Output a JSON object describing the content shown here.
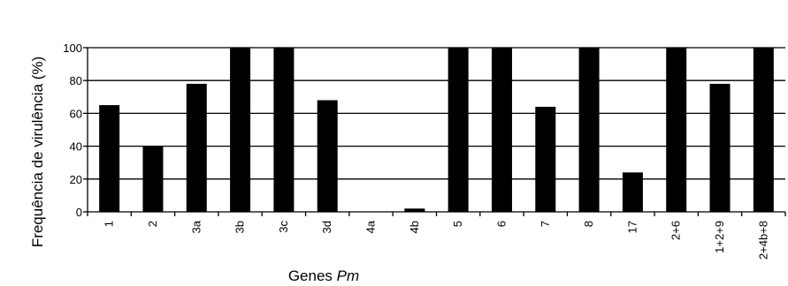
{
  "chart_data": {
    "type": "bar",
    "title": "",
    "xlabel": "Genes",
    "xlabel_italic": "Pm",
    "ylabel": "Frequência de virulência (%)",
    "ylim": [
      0,
      100
    ],
    "yticks": [
      0,
      20,
      40,
      60,
      80,
      100
    ],
    "grid": true,
    "legend": "none",
    "bar_color": "#000000",
    "categories": [
      "1",
      "2",
      "3a",
      "3b",
      "3c",
      "3d",
      "4a",
      "4b",
      "5",
      "6",
      "7",
      "8",
      "17",
      "2+6",
      "1+2+9",
      "2+4b+8"
    ],
    "values": [
      65,
      40,
      78,
      100,
      100,
      68,
      0,
      2,
      100,
      100,
      64,
      100,
      24,
      100,
      78,
      100
    ]
  }
}
